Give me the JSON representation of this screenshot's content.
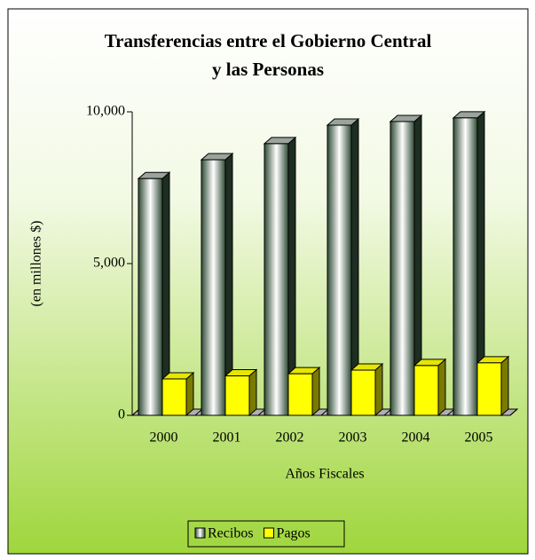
{
  "chart_data": {
    "type": "bar3d",
    "title": [
      "Transferencias entre el Gobierno Central",
      "y las Personas"
    ],
    "y_label": "(en millones $)",
    "x_label": "Años Fiscales",
    "categories": [
      "2000",
      "2001",
      "2002",
      "2003",
      "2004",
      "2005"
    ],
    "series": [
      {
        "name": "Recibos",
        "color": "#2f4a35",
        "values": [
          7800,
          8420,
          8950,
          9560,
          9680,
          9800
        ]
      },
      {
        "name": "Pagos",
        "color": "#ffff00",
        "values": [
          1200,
          1300,
          1370,
          1490,
          1640,
          1730
        ]
      }
    ],
    "ylim": [
      0,
      10000
    ],
    "yticks": [
      0,
      {
        "value": 5000,
        "label": "5,000"
      },
      {
        "value": 10000,
        "label": "10,000"
      }
    ],
    "grid": false,
    "legend": "bottom"
  }
}
